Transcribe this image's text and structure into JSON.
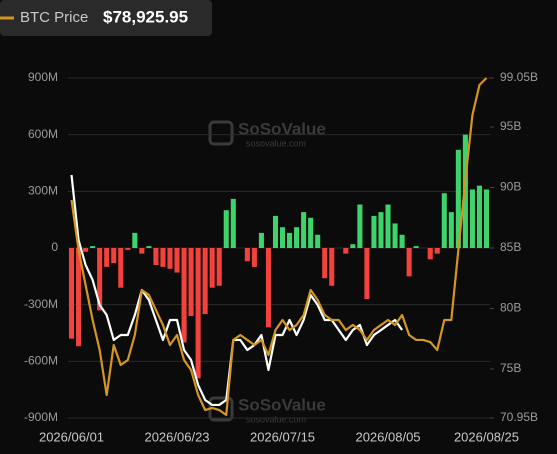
{
  "chart_data": {
    "type": "bar",
    "legend": {
      "name": "BTC Price",
      "value": "$78,925.95"
    },
    "watermarks": [
      {
        "title": "SoSoValue",
        "url": "sosovalue.com"
      },
      {
        "title": "SoSoValue",
        "url": "sosovalue.com"
      }
    ],
    "categories": [
      "2026/06/01",
      null,
      null,
      null,
      null,
      null,
      null,
      null,
      null,
      null,
      null,
      null,
      null,
      null,
      null,
      "2026/06/23",
      null,
      null,
      null,
      null,
      null,
      null,
      null,
      null,
      null,
      null,
      null,
      null,
      null,
      null,
      "2026/07/15",
      null,
      null,
      null,
      null,
      null,
      null,
      null,
      null,
      null,
      null,
      null,
      null,
      null,
      null,
      "2026/08/05",
      null,
      null,
      null,
      null,
      null,
      null,
      null,
      null,
      null,
      null,
      null,
      null,
      null,
      "2026/08/25"
    ],
    "ylim": [
      -900,
      900
    ],
    "yticks": [
      {
        "value": -900,
        "label": "-900M"
      },
      {
        "value": -600,
        "label": "-600M"
      },
      {
        "value": -300,
        "label": "-300M"
      },
      0,
      {
        "value": 300,
        "label": "300M"
      },
      {
        "value": 600,
        "label": "600M"
      },
      {
        "value": 900,
        "label": "900M"
      }
    ],
    "y2lim": [
      70.95,
      99.05
    ],
    "y2ticks": [
      {
        "value": 70.95,
        "label": "70.95B"
      },
      {
        "value": 75,
        "label": "75B"
      },
      {
        "value": 80,
        "label": "80B"
      },
      {
        "value": 85,
        "label": "85B"
      },
      {
        "value": 90,
        "label": "90B"
      },
      {
        "value": 95,
        "label": "95B"
      },
      {
        "value": 99.05,
        "label": "99.05B"
      }
    ],
    "grid": true,
    "series": [
      {
        "type": "bar",
        "colors": {
          "positive": "#3fd36c",
          "negative": "#f2423b"
        },
        "values": [
          -480,
          -520,
          -20,
          10,
          -330,
          -100,
          -80,
          -210,
          -10,
          80,
          -30,
          10,
          -90,
          -100,
          -110,
          -130,
          -500,
          -360,
          -690,
          -350,
          -210,
          -200,
          200,
          260,
          0,
          -70,
          -100,
          80,
          -420,
          170,
          110,
          80,
          110,
          190,
          160,
          70,
          -160,
          -200,
          0,
          -30,
          20,
          230,
          -270,
          170,
          190,
          230,
          130,
          70,
          -150,
          10,
          0,
          -60,
          -30,
          290,
          190,
          520,
          600,
          310,
          330,
          310
        ]
      },
      {
        "type": "line",
        "axis": "y2",
        "color": "#ffffff",
        "values": [
          91.03,
          85.66,
          83.6,
          82.36,
          80.29,
          79.46,
          77.4,
          77.81,
          77.81,
          79.46,
          81.53,
          80.7,
          79.05,
          77.4,
          79.05,
          79.05,
          76.57,
          75.74,
          73.68,
          72.44,
          72.03,
          72.03,
          72.44,
          77.4,
          77.4,
          76.57,
          76.98,
          77.81,
          74.92,
          77.81,
          77.81,
          79.05,
          77.81,
          79.05,
          81.12,
          80.29,
          79.05,
          79.05,
          78.22,
          77.4,
          78.22,
          78.64,
          76.98,
          77.81,
          78.22,
          78.64,
          79.05,
          78.22,
          null,
          null,
          null,
          null,
          null,
          null,
          null,
          null,
          null,
          null,
          null,
          null
        ]
      },
      {
        "type": "line",
        "axis": "y2",
        "name": "BTC Price",
        "color": "#d4961f",
        "values": [
          88.97,
          84.84,
          81.94,
          79.05,
          76.57,
          72.85,
          76.98,
          75.33,
          75.74,
          77.81,
          81.53,
          81.12,
          79.88,
          78.64,
          76.98,
          77.81,
          75.74,
          74.92,
          72.85,
          71.61,
          71.78,
          71.61,
          71.2,
          77.4,
          77.81,
          77.4,
          76.98,
          77.4,
          76.16,
          78.22,
          79.05,
          78.22,
          78.64,
          79.46,
          81.53,
          80.7,
          79.46,
          79.05,
          79.05,
          78.22,
          78.64,
          78.22,
          77.4,
          78.22,
          78.64,
          79.05,
          78.64,
          79.46,
          77.81,
          77.4,
          77.4,
          77.23,
          76.57,
          79.05,
          79.05,
          84.84,
          90.62,
          95.99,
          98.47,
          99.05
        ]
      }
    ]
  }
}
